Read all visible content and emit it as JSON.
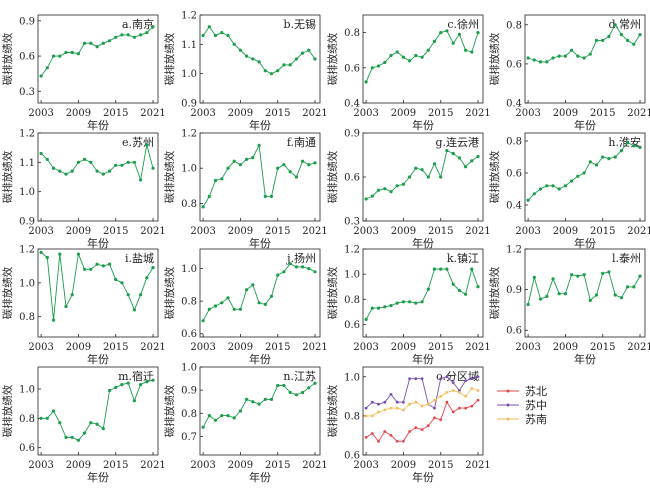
{
  "colors": {
    "line": "#1a9e4b",
    "su_north": "#e8474b",
    "su_central": "#7b4fb0",
    "su_south": "#f3bd5a"
  },
  "chart_data": [
    {
      "type": "line",
      "panel_label": "a.南京",
      "xlabel": "年份",
      "ylabel": "碳排放绩效",
      "x": [
        2003,
        2004,
        2005,
        2006,
        2007,
        2008,
        2009,
        2010,
        2011,
        2012,
        2013,
        2014,
        2015,
        2016,
        2017,
        2018,
        2019,
        2020,
        2021
      ],
      "series": [
        {
          "values": [
            0.43,
            0.5,
            0.6,
            0.6,
            0.63,
            0.63,
            0.62,
            0.71,
            0.71,
            0.68,
            0.71,
            0.73,
            0.76,
            0.78,
            0.78,
            0.76,
            0.78,
            0.8,
            0.85
          ]
        }
      ],
      "ylim": [
        0.2,
        0.95
      ],
      "yticks": [
        0.3,
        0.6,
        0.9
      ],
      "xticks": [
        2003,
        2009,
        2015,
        2021
      ]
    },
    {
      "type": "line",
      "panel_label": "b.无锡",
      "xlabel": "年份",
      "ylabel": "碳排放绩效",
      "x": [
        2003,
        2004,
        2005,
        2006,
        2007,
        2008,
        2009,
        2010,
        2011,
        2012,
        2013,
        2014,
        2015,
        2016,
        2017,
        2018,
        2019,
        2020,
        2021
      ],
      "series": [
        {
          "values": [
            1.13,
            1.16,
            1.13,
            1.14,
            1.13,
            1.1,
            1.08,
            1.06,
            1.05,
            1.04,
            1.01,
            1.0,
            1.01,
            1.03,
            1.03,
            1.05,
            1.07,
            1.08,
            1.05
          ]
        }
      ],
      "ylim": [
        0.9,
        1.2
      ],
      "yticks": [
        0.9,
        1.0,
        1.1,
        1.2
      ],
      "xticks": [
        2003,
        2009,
        2015,
        2021
      ]
    },
    {
      "type": "line",
      "panel_label": "c.徐州",
      "xlabel": "年份",
      "ylabel": "碳排放绩效",
      "x": [
        2003,
        2004,
        2005,
        2006,
        2007,
        2008,
        2009,
        2010,
        2011,
        2012,
        2013,
        2014,
        2015,
        2016,
        2017,
        2018,
        2019,
        2020,
        2021
      ],
      "series": [
        {
          "values": [
            0.52,
            0.6,
            0.61,
            0.63,
            0.67,
            0.69,
            0.66,
            0.64,
            0.67,
            0.66,
            0.7,
            0.75,
            0.8,
            0.81,
            0.74,
            0.79,
            0.7,
            0.69,
            0.8
          ]
        }
      ],
      "ylim": [
        0.4,
        0.9
      ],
      "yticks": [
        0.4,
        0.6,
        0.8
      ],
      "xticks": [
        2003,
        2009,
        2015,
        2021
      ]
    },
    {
      "type": "line",
      "panel_label": "d.常州",
      "xlabel": "年份",
      "ylabel": "碳排放绩效",
      "x": [
        2003,
        2004,
        2005,
        2006,
        2007,
        2008,
        2009,
        2010,
        2011,
        2012,
        2013,
        2014,
        2015,
        2016,
        2017,
        2018,
        2019,
        2020,
        2021
      ],
      "series": [
        {
          "values": [
            0.63,
            0.62,
            0.61,
            0.61,
            0.63,
            0.64,
            0.64,
            0.67,
            0.64,
            0.63,
            0.65,
            0.72,
            0.72,
            0.74,
            0.8,
            0.75,
            0.72,
            0.7,
            0.75
          ]
        }
      ],
      "ylim": [
        0.4,
        0.85
      ],
      "yticks": [
        0.4,
        0.6,
        0.8
      ],
      "xticks": [
        2003,
        2009,
        2015,
        2021
      ]
    },
    {
      "type": "line",
      "panel_label": "e.苏州",
      "xlabel": "年份",
      "ylabel": "碳排放绩效",
      "x": [
        2003,
        2004,
        2005,
        2006,
        2007,
        2008,
        2009,
        2010,
        2011,
        2012,
        2013,
        2014,
        2015,
        2016,
        2017,
        2018,
        2019,
        2020,
        2021
      ],
      "series": [
        {
          "values": [
            1.13,
            1.11,
            1.08,
            1.07,
            1.06,
            1.07,
            1.1,
            1.11,
            1.1,
            1.07,
            1.06,
            1.07,
            1.09,
            1.09,
            1.1,
            1.1,
            1.04,
            1.16,
            1.08
          ]
        }
      ],
      "ylim": [
        0.9,
        1.2
      ],
      "yticks": [
        0.9,
        1.0,
        1.1,
        1.2
      ],
      "xticks": [
        2003,
        2009,
        2015,
        2021
      ]
    },
    {
      "type": "line",
      "panel_label": "f.南通",
      "xlabel": "年份",
      "ylabel": "碳排放绩效",
      "x": [
        2003,
        2004,
        2005,
        2006,
        2007,
        2008,
        2009,
        2010,
        2011,
        2012,
        2013,
        2014,
        2015,
        2016,
        2017,
        2018,
        2019,
        2020,
        2021
      ],
      "series": [
        {
          "values": [
            0.78,
            0.84,
            0.93,
            0.94,
            1.0,
            1.04,
            1.02,
            1.05,
            1.06,
            1.13,
            0.84,
            0.84,
            1.0,
            1.02,
            0.98,
            0.95,
            1.04,
            1.02,
            1.03
          ]
        }
      ],
      "ylim": [
        0.7,
        1.2
      ],
      "yticks": [
        0.8,
        1.0,
        1.2
      ],
      "xticks": [
        2003,
        2009,
        2015,
        2021
      ]
    },
    {
      "type": "line",
      "panel_label": "g.连云港",
      "xlabel": "年份",
      "ylabel": "碳排放绩效",
      "x": [
        2003,
        2004,
        2005,
        2006,
        2007,
        2008,
        2009,
        2010,
        2011,
        2012,
        2013,
        2014,
        2015,
        2016,
        2017,
        2018,
        2019,
        2020,
        2021
      ],
      "series": [
        {
          "values": [
            0.45,
            0.47,
            0.51,
            0.52,
            0.5,
            0.54,
            0.55,
            0.6,
            0.66,
            0.65,
            0.6,
            0.69,
            0.6,
            0.78,
            0.76,
            0.73,
            0.67,
            0.71,
            0.74
          ]
        }
      ],
      "ylim": [
        0.3,
        0.9
      ],
      "yticks": [
        0.3,
        0.6,
        0.9
      ],
      "xticks": [
        2003,
        2009,
        2015,
        2021
      ]
    },
    {
      "type": "line",
      "panel_label": "h.淮安",
      "xlabel": "年份",
      "ylabel": "碳排放绩效",
      "x": [
        2003,
        2004,
        2005,
        2006,
        2007,
        2008,
        2009,
        2010,
        2011,
        2012,
        2013,
        2014,
        2015,
        2016,
        2017,
        2018,
        2019,
        2020,
        2021
      ],
      "series": [
        {
          "values": [
            0.43,
            0.47,
            0.5,
            0.52,
            0.52,
            0.5,
            0.52,
            0.55,
            0.58,
            0.6,
            0.67,
            0.65,
            0.7,
            0.69,
            0.7,
            0.74,
            0.79,
            0.77,
            0.76
          ]
        }
      ],
      "ylim": [
        0.3,
        0.85
      ],
      "yticks": [
        0.4,
        0.6,
        0.8
      ],
      "xticks": [
        2003,
        2009,
        2015,
        2021
      ]
    },
    {
      "type": "line",
      "panel_label": "i.盐城",
      "xlabel": "年份",
      "ylabel": "碳排放绩效",
      "x": [
        2003,
        2004,
        2005,
        2006,
        2007,
        2008,
        2009,
        2010,
        2011,
        2012,
        2013,
        2014,
        2015,
        2016,
        2017,
        2018,
        2019,
        2020,
        2021
      ],
      "series": [
        {
          "values": [
            1.18,
            1.15,
            0.78,
            1.17,
            0.86,
            0.93,
            1.17,
            1.08,
            1.08,
            1.11,
            1.1,
            1.11,
            1.02,
            1.0,
            0.93,
            0.84,
            0.93,
            1.03,
            1.09
          ]
        }
      ],
      "ylim": [
        0.68,
        1.2
      ],
      "yticks": [
        0.8,
        1.0,
        1.2
      ],
      "xticks": [
        2003,
        2009,
        2015,
        2021
      ]
    },
    {
      "type": "line",
      "panel_label": "j.扬州",
      "xlabel": "年份",
      "ylabel": "碳排放绩效",
      "x": [
        2003,
        2004,
        2005,
        2006,
        2007,
        2008,
        2009,
        2010,
        2011,
        2012,
        2013,
        2014,
        2015,
        2016,
        2017,
        2018,
        2019,
        2020,
        2021
      ],
      "series": [
        {
          "values": [
            0.68,
            0.75,
            0.77,
            0.79,
            0.82,
            0.75,
            0.75,
            0.87,
            0.9,
            0.79,
            0.78,
            0.83,
            0.96,
            0.98,
            1.03,
            1.01,
            1.01,
            1.0,
            0.98
          ]
        }
      ],
      "ylim": [
        0.58,
        1.12
      ],
      "yticks": [
        0.6,
        0.8,
        1.0
      ],
      "xticks": [
        2003,
        2009,
        2015,
        2021
      ]
    },
    {
      "type": "line",
      "panel_label": "k.镇江",
      "xlabel": "年份",
      "ylabel": "碳排放绩效",
      "x": [
        2003,
        2004,
        2005,
        2006,
        2007,
        2008,
        2009,
        2010,
        2011,
        2012,
        2013,
        2014,
        2015,
        2016,
        2017,
        2018,
        2019,
        2020,
        2021
      ],
      "series": [
        {
          "values": [
            0.64,
            0.73,
            0.73,
            0.74,
            0.75,
            0.77,
            0.78,
            0.78,
            0.77,
            0.78,
            0.88,
            1.04,
            1.04,
            1.04,
            0.92,
            0.87,
            0.84,
            1.04,
            0.9
          ]
        }
      ],
      "ylim": [
        0.5,
        1.2
      ],
      "yticks": [
        0.6,
        0.8,
        1.0,
        1.2
      ],
      "xticks": [
        2003,
        2009,
        2015,
        2021
      ]
    },
    {
      "type": "line",
      "panel_label": "l.泰州",
      "xlabel": "年份",
      "ylabel": "碳排放绩效",
      "x": [
        2003,
        2004,
        2005,
        2006,
        2007,
        2008,
        2009,
        2010,
        2011,
        2012,
        2013,
        2014,
        2015,
        2016,
        2017,
        2018,
        2019,
        2020,
        2021
      ],
      "series": [
        {
          "values": [
            0.79,
            0.99,
            0.83,
            0.85,
            0.98,
            0.87,
            0.87,
            1.01,
            1.0,
            1.01,
            0.82,
            0.86,
            1.02,
            1.03,
            0.86,
            0.84,
            0.92,
            0.92,
            1.0
          ]
        }
      ],
      "ylim": [
        0.55,
        1.2
      ],
      "yticks": [
        0.6,
        0.9,
        1.2
      ],
      "xticks": [
        2003,
        2009,
        2015,
        2021
      ]
    },
    {
      "type": "line",
      "panel_label": "m.宿迁",
      "xlabel": "年份",
      "ylabel": "碳排放绩效",
      "x": [
        2003,
        2004,
        2005,
        2006,
        2007,
        2008,
        2009,
        2010,
        2011,
        2012,
        2013,
        2014,
        2015,
        2016,
        2017,
        2018,
        2019,
        2020,
        2021
      ],
      "series": [
        {
          "values": [
            0.8,
            0.8,
            0.85,
            0.77,
            0.67,
            0.67,
            0.65,
            0.7,
            0.77,
            0.76,
            0.73,
            0.99,
            1.01,
            1.03,
            1.04,
            0.92,
            1.03,
            1.05,
            1.06
          ]
        }
      ],
      "ylim": [
        0.55,
        1.15
      ],
      "yticks": [
        0.6,
        0.8,
        1.0
      ],
      "xticks": [
        2003,
        2009,
        2015,
        2021
      ]
    },
    {
      "type": "line",
      "panel_label": "n.江苏",
      "xlabel": "年份",
      "ylabel": "碳排放绩效",
      "x": [
        2003,
        2004,
        2005,
        2006,
        2007,
        2008,
        2009,
        2010,
        2011,
        2012,
        2013,
        2014,
        2015,
        2016,
        2017,
        2018,
        2019,
        2020,
        2021
      ],
      "series": [
        {
          "values": [
            0.74,
            0.79,
            0.77,
            0.79,
            0.79,
            0.78,
            0.81,
            0.86,
            0.85,
            0.84,
            0.86,
            0.86,
            0.92,
            0.92,
            0.89,
            0.88,
            0.89,
            0.91,
            0.93
          ]
        }
      ],
      "ylim": [
        0.62,
        1.0
      ],
      "yticks": [
        0.7,
        0.8,
        0.9,
        1.0
      ],
      "xticks": [
        2003,
        2009,
        2015,
        2021
      ]
    },
    {
      "type": "line",
      "panel_label": "o.分区域",
      "xlabel": "年份",
      "ylabel": "碳排放绩效",
      "x": [
        2003,
        2004,
        2005,
        2006,
        2007,
        2008,
        2009,
        2010,
        2011,
        2012,
        2013,
        2014,
        2015,
        2016,
        2017,
        2018,
        2019,
        2020,
        2021
      ],
      "series": [
        {
          "name": "苏北",
          "values": [
            0.69,
            0.71,
            0.67,
            0.72,
            0.7,
            0.67,
            0.67,
            0.72,
            0.74,
            0.73,
            0.75,
            0.79,
            0.78,
            0.87,
            0.82,
            0.84,
            0.84,
            0.85,
            0.88
          ]
        },
        {
          "name": "苏中",
          "values": [
            0.84,
            0.87,
            0.86,
            0.87,
            0.91,
            0.87,
            0.87,
            0.99,
            0.99,
            0.99,
            0.86,
            0.84,
            0.99,
            1.0,
            0.97,
            0.93,
            0.98,
            0.99,
            1.0
          ]
        },
        {
          "name": "苏南",
          "values": [
            0.8,
            0.8,
            0.82,
            0.83,
            0.84,
            0.84,
            0.83,
            0.86,
            0.87,
            0.85,
            0.86,
            0.88,
            0.9,
            0.92,
            0.93,
            0.92,
            0.9,
            0.94,
            0.93
          ]
        }
      ],
      "ylim": [
        0.6,
        1.05
      ],
      "yticks": [
        0.6,
        0.8,
        1.0
      ],
      "xticks": [
        2003,
        2009,
        2015,
        2021
      ],
      "legend": "right"
    }
  ]
}
